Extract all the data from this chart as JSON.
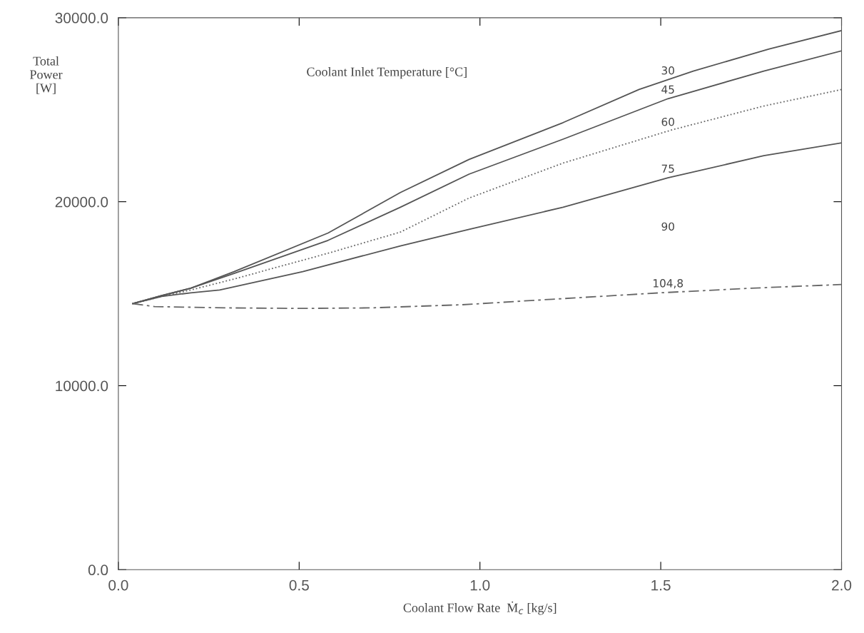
{
  "chart_data": {
    "type": "line",
    "xlabel": "Coolant Flow Rate  Ṁ$_{c}$ [kg/s]",
    "ylabel": "Total\nPower\n[W]",
    "xlim": [
      0.0,
      2.0
    ],
    "ylim": [
      0.0,
      30000.0
    ],
    "xticks": [
      {
        "value": 0,
        "label": "0.0"
      },
      {
        "value": 0.5,
        "label": "0.5"
      },
      {
        "value": 1,
        "label": "1.0"
      },
      {
        "value": 1.5,
        "label": "1.5"
      },
      {
        "value": 2,
        "label": "2.0"
      }
    ],
    "yticks": [
      {
        "value": 0,
        "label": "0.0"
      },
      {
        "value": 10000,
        "label": "10000.0"
      },
      {
        "value": 20000,
        "label": "20000.0"
      },
      {
        "value": 30000,
        "label": "30000.0"
      }
    ],
    "grid": false,
    "legend": false,
    "marker": "none",
    "series": [
      {
        "name": "30",
        "color": "#555555",
        "line_style": "solid",
        "x": [
          0.04,
          0.12,
          0.2,
          0.32,
          0.58,
          0.78,
          0.97,
          1.23,
          1.44,
          1.59,
          1.8,
          2.0
        ],
        "values": [
          14460,
          14900,
          15300,
          16200,
          18300,
          20500,
          22300,
          24300,
          26100,
          27100,
          28300,
          29300
        ]
      },
      {
        "name": "45",
        "color": "#555555",
        "line_style": "solid",
        "x": [
          0.04,
          0.12,
          0.2,
          0.32,
          0.58,
          0.78,
          0.97,
          1.23,
          1.52,
          1.785,
          2.0
        ],
        "values": [
          14460,
          14900,
          15300,
          16100,
          17900,
          19700,
          21500,
          23400,
          25600,
          27100,
          28200
        ]
      },
      {
        "name": "60",
        "color": "#666666",
        "line_style": "dotted",
        "x": [
          0.04,
          0.12,
          0.2,
          0.32,
          0.58,
          0.78,
          0.97,
          1.23,
          1.53,
          1.785,
          2.0
        ],
        "values": [
          14460,
          14850,
          15200,
          15800,
          17200,
          18350,
          20200,
          22100,
          23900,
          25200,
          26100
        ]
      },
      {
        "name": "75",
        "color": "#555555",
        "line_style": "solid",
        "x": [
          0.04,
          0.12,
          0.2,
          0.28,
          0.51,
          0.78,
          0.97,
          1.23,
          1.52,
          1.785,
          2.0
        ],
        "values": [
          14460,
          14850,
          15050,
          15200,
          16200,
          17600,
          18500,
          19700,
          21300,
          22500,
          23200
        ]
      },
      {
        "name": "104,8",
        "color": "#666666",
        "line_style": "dashed",
        "x": [
          0.04,
          0.1,
          0.3,
          0.5,
          0.7,
          0.95,
          1.2,
          1.5,
          1.75,
          2.0
        ],
        "values": [
          14460,
          14300,
          14230,
          14200,
          14230,
          14400,
          14700,
          15050,
          15300,
          15500
        ]
      }
    ],
    "annotations": [
      "Coolant Inlet Temperature [°C]",
      "90"
    ]
  }
}
